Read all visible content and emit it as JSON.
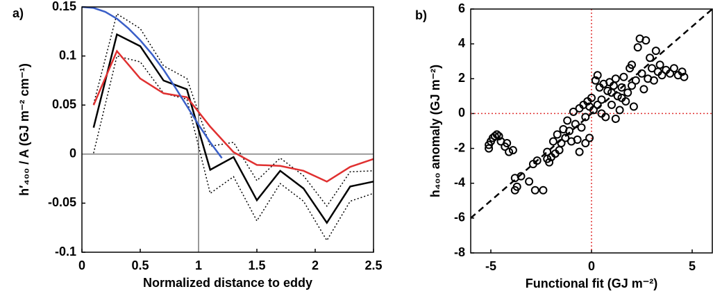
{
  "chart_data": [
    {
      "type": "line",
      "panel_label": "a)",
      "xlabel": "Normalized distance to eddy",
      "ylabel": "h′₄₀₀ / A (GJ m⁻² cm⁻¹)",
      "xlim": [
        0,
        2.5
      ],
      "ylim": [
        -0.1,
        0.15
      ],
      "xticks": [
        0,
        0.5,
        1,
        1.5,
        2,
        2.5
      ],
      "yticks": [
        -0.1,
        -0.05,
        0,
        0.05,
        0.1,
        0.15
      ],
      "ref_lines": [
        {
          "axis": "x",
          "value": 1,
          "color": "#999999"
        },
        {
          "axis": "y",
          "value": 0,
          "color": "#999999"
        }
      ],
      "series": [
        {
          "color": "#000000",
          "style": "dotted",
          "x": [
            0.1,
            0.3,
            0.5,
            0.7,
            0.9,
            1.1,
            1.3,
            1.5,
            1.7,
            1.9,
            2.1,
            2.3,
            2.5
          ],
          "values": [
            0.051,
            0.143,
            0.128,
            0.09,
            0.077,
            0.008,
            0.012,
            -0.027,
            -0.004,
            -0.022,
            -0.053,
            -0.018,
            -0.017
          ]
        },
        {
          "color": "#000000",
          "style": "dotted",
          "x": [
            0.1,
            0.3,
            0.5,
            0.7,
            0.9,
            1.1,
            1.3,
            1.5,
            1.7,
            1.9,
            2.1,
            2.3,
            2.5
          ],
          "values": [
            0.001,
            0.1,
            0.094,
            0.062,
            0.056,
            -0.04,
            -0.023,
            -0.068,
            -0.03,
            -0.048,
            -0.088,
            -0.048,
            -0.04
          ]
        },
        {
          "color": "#000000",
          "style": "solid",
          "x": [
            0.1,
            0.3,
            0.5,
            0.7,
            0.9,
            1.1,
            1.3,
            1.5,
            1.7,
            1.9,
            2.1,
            2.3,
            2.5
          ],
          "values": [
            0.027,
            0.122,
            0.11,
            0.075,
            0.066,
            -0.016,
            -0.003,
            -0.047,
            -0.017,
            -0.035,
            -0.07,
            -0.033,
            -0.028
          ]
        },
        {
          "color": "#e03030",
          "style": "solid",
          "x": [
            0.1,
            0.3,
            0.5,
            0.7,
            0.9,
            1.1,
            1.3,
            1.5,
            1.7,
            1.9,
            2.1,
            2.3,
            2.5
          ],
          "values": [
            0.05,
            0.105,
            0.077,
            0.062,
            0.058,
            0.028,
            0.002,
            -0.011,
            -0.012,
            -0.017,
            -0.028,
            -0.013,
            -0.005
          ]
        },
        {
          "color": "#3a5fc8",
          "style": "solid",
          "x": [
            0,
            0.1,
            0.2,
            0.3,
            0.4,
            0.5,
            0.6,
            0.7,
            0.8,
            0.9,
            1.0,
            1.1,
            1.2
          ],
          "values": [
            0.15,
            0.149,
            0.145,
            0.138,
            0.128,
            0.116,
            0.102,
            0.086,
            0.068,
            0.049,
            0.03,
            0.012,
            -0.004
          ]
        }
      ]
    },
    {
      "type": "scatter",
      "panel_label": "b)",
      "xlabel": "Functional fit (GJ m⁻²)",
      "ylabel": "h₄₀₀ anomaly (GJ m⁻²)",
      "xlim": [
        -6,
        6
      ],
      "ylim": [
        -8,
        6
      ],
      "xticks": [
        -5,
        0,
        5
      ],
      "yticks": [
        -8,
        -6,
        -4,
        -2,
        0,
        2,
        4,
        6
      ],
      "ref_lines": [
        {
          "axis": "x",
          "value": 0,
          "color": "#e03030"
        },
        {
          "axis": "y",
          "value": 0,
          "color": "#e03030"
        }
      ],
      "identity_line": true,
      "color": "#000000",
      "x": [
        -5.1,
        -5.1,
        -5.0,
        -4.9,
        -4.8,
        -4.7,
        -4.6,
        -4.5,
        -4.3,
        -4.1,
        -4.2,
        -3.9,
        -3.8,
        -3.8,
        -3.7,
        -3.5,
        -3.1,
        -2.9,
        -2.7,
        -2.8,
        -2.4,
        -2.2,
        -2.1,
        -2.0,
        -2.2,
        -1.9,
        -1.8,
        -1.7,
        -1.6,
        -1.5,
        -1.4,
        -1.3,
        -1.2,
        -1.1,
        -1.0,
        -0.9,
        -0.8,
        -0.7,
        -0.6,
        -0.5,
        -0.4,
        -0.3,
        -0.2,
        -0.1,
        0,
        -0.3,
        -0.6,
        0.1,
        0.2,
        0.3,
        0.4,
        0.5,
        0.6,
        0.7,
        0.8,
        0.9,
        1.0,
        1.1,
        1.2,
        1.3,
        1.4,
        1.5,
        1.6,
        1.7,
        1.8,
        1.9,
        2.0,
        2.1,
        2.2,
        2.3,
        2.4,
        2.5,
        2.6,
        2.7,
        2.8,
        2.9,
        3.0,
        3.1,
        3.2,
        3.3,
        3.4,
        3.5,
        3.7,
        3.9,
        4.1,
        4.3,
        4.5,
        4.6,
        1.0,
        0.5,
        1.5,
        2.0,
        1.2,
        0.3,
        -0.1
      ],
      "values": [
        -1.8,
        -2.0,
        -1.6,
        -1.4,
        -1.3,
        -1.2,
        -1.3,
        -1.6,
        -1.9,
        -2.2,
        -1.7,
        -2.1,
        -3.7,
        -4.4,
        -4.2,
        -3.6,
        -3.9,
        -2.9,
        -2.7,
        -4.4,
        -4.4,
        -2.6,
        -2.8,
        -2.5,
        -2.2,
        -1.6,
        -2.3,
        -1.2,
        -2.1,
        -1.7,
        -0.9,
        -1.4,
        -0.4,
        -1.0,
        -1.6,
        0.1,
        -0.6,
        -1.5,
        0.3,
        -0.8,
        0.5,
        -1.7,
        0.7,
        -1.4,
        0.9,
        -0.2,
        -2.2,
        0.2,
        1.9,
        2.2,
        1.5,
        0.8,
        1.7,
        -0.2,
        1.3,
        1.8,
        0.5,
        1.6,
        2.0,
        1.0,
        0.2,
        1.5,
        2.1,
        0.7,
        1.2,
        2.6,
        1.6,
        0.4,
        1.9,
        3.8,
        4.3,
        2.3,
        1.4,
        4.2,
        2.0,
        3.2,
        2.6,
        1.9,
        3.6,
        2.4,
        2.8,
        2.2,
        2.5,
        2.3,
        2.6,
        2.2,
        2.4,
        2.1,
        1.2,
        0.0,
        0.9,
        2.8,
        -0.3,
        0.5,
        0.4
      ]
    }
  ]
}
